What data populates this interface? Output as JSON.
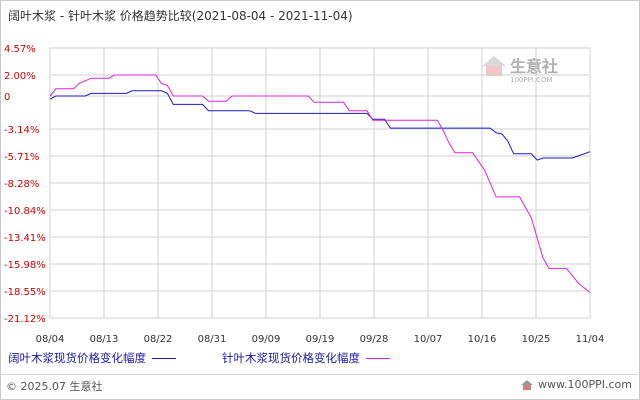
{
  "title": "阔叶木浆 - 针叶木浆 价格趋势比较(2021-08-04 - 2021-11-04)",
  "watermark": {
    "brand": "生意社",
    "url": "100PPI.COM"
  },
  "footer": {
    "copyright": "© 2025.07 生意社",
    "site": "www.100PPI.com"
  },
  "colors": {
    "series1": "#1a1acc",
    "series2": "#e020e0",
    "grid": "#d0d0d0",
    "axis_label": "#cc0000"
  },
  "chart_data": {
    "type": "line",
    "title": "阔叶木浆 - 针叶木浆 价格趋势比较(2021-08-04 - 2021-11-04)",
    "xlabel": "",
    "ylabel": "",
    "x_tick_labels": [
      "08/04",
      "08/13",
      "08/22",
      "08/31",
      "09/09",
      "09/19",
      "09/28",
      "10/07",
      "10/16",
      "10/25",
      "11/04"
    ],
    "y_tick_labels": [
      "4.57%",
      "2.00%",
      "0",
      "-3.14%",
      "-5.71%",
      "-8.28%",
      "-10.84%",
      "-13.41%",
      "-15.98%",
      "-18.55%",
      "-21.12%"
    ],
    "y_tick_values": [
      4.57,
      2.0,
      0,
      -3.14,
      -5.71,
      -8.28,
      -10.84,
      -13.41,
      -15.98,
      -18.55,
      -21.12
    ],
    "ylim": [
      -21.12,
      4.57
    ],
    "xlim": [
      "2021-08-04",
      "2021-11-04"
    ],
    "grid": true,
    "legend_position": "bottom",
    "series": [
      {
        "name": "阔叶木浆现货价格变化幅度",
        "color": "#1a1acc",
        "points": [
          [
            "2021-08-04",
            -0.3
          ],
          [
            "2021-08-05",
            0.0
          ],
          [
            "2021-08-10",
            0.0
          ],
          [
            "2021-08-11",
            0.25
          ],
          [
            "2021-08-17",
            0.25
          ],
          [
            "2021-08-18",
            0.5
          ],
          [
            "2021-08-23",
            0.5
          ],
          [
            "2021-08-24",
            0.25
          ],
          [
            "2021-08-25",
            -0.8
          ],
          [
            "2021-08-30",
            -0.8
          ],
          [
            "2021-08-31",
            -1.4
          ],
          [
            "2021-09-07",
            -1.4
          ],
          [
            "2021-09-08",
            -1.65
          ],
          [
            "2021-09-27",
            -1.65
          ],
          [
            "2021-09-28",
            -2.2
          ],
          [
            "2021-09-30",
            -2.2
          ],
          [
            "2021-10-01",
            -3.05
          ],
          [
            "2021-10-18",
            -3.05
          ],
          [
            "2021-10-19",
            -3.5
          ],
          [
            "2021-10-20",
            -3.6
          ],
          [
            "2021-10-21",
            -4.3
          ],
          [
            "2021-10-22",
            -5.5
          ],
          [
            "2021-10-25",
            -5.5
          ],
          [
            "2021-10-26",
            -6.1
          ],
          [
            "2021-10-27",
            -5.9
          ],
          [
            "2021-11-01",
            -5.9
          ],
          [
            "2021-11-02",
            -5.7
          ],
          [
            "2021-11-04",
            -5.3
          ]
        ]
      },
      {
        "name": "针叶木浆现货价格变化幅度",
        "color": "#e020e0",
        "points": [
          [
            "2021-08-04",
            0.0
          ],
          [
            "2021-08-05",
            0.7
          ],
          [
            "2021-08-08",
            0.7
          ],
          [
            "2021-08-09",
            1.2
          ],
          [
            "2021-08-11",
            1.7
          ],
          [
            "2021-08-14",
            1.7
          ],
          [
            "2021-08-15",
            2.0
          ],
          [
            "2021-08-22",
            2.0
          ],
          [
            "2021-08-23",
            1.2
          ],
          [
            "2021-08-24",
            1.0
          ],
          [
            "2021-08-25",
            0.0
          ],
          [
            "2021-08-30",
            0.0
          ],
          [
            "2021-08-31",
            -0.5
          ],
          [
            "2021-09-03",
            -0.5
          ],
          [
            "2021-09-04",
            0.0
          ],
          [
            "2021-09-17",
            0.0
          ],
          [
            "2021-09-18",
            -0.6
          ],
          [
            "2021-09-23",
            -0.6
          ],
          [
            "2021-09-24",
            -1.4
          ],
          [
            "2021-09-27",
            -1.4
          ],
          [
            "2021-09-28",
            -2.3
          ],
          [
            "2021-10-09",
            -2.3
          ],
          [
            "2021-10-10",
            -3.3
          ],
          [
            "2021-10-11",
            -4.5
          ],
          [
            "2021-10-12",
            -5.4
          ],
          [
            "2021-10-15",
            -5.4
          ],
          [
            "2021-10-17",
            -7.0
          ],
          [
            "2021-10-19",
            -9.6
          ],
          [
            "2021-10-23",
            -9.6
          ],
          [
            "2021-10-25",
            -11.6
          ],
          [
            "2021-10-27",
            -15.4
          ],
          [
            "2021-10-28",
            -16.4
          ],
          [
            "2021-10-31",
            -16.4
          ],
          [
            "2021-11-02",
            -17.8
          ],
          [
            "2021-11-04",
            -18.7
          ]
        ]
      }
    ]
  }
}
